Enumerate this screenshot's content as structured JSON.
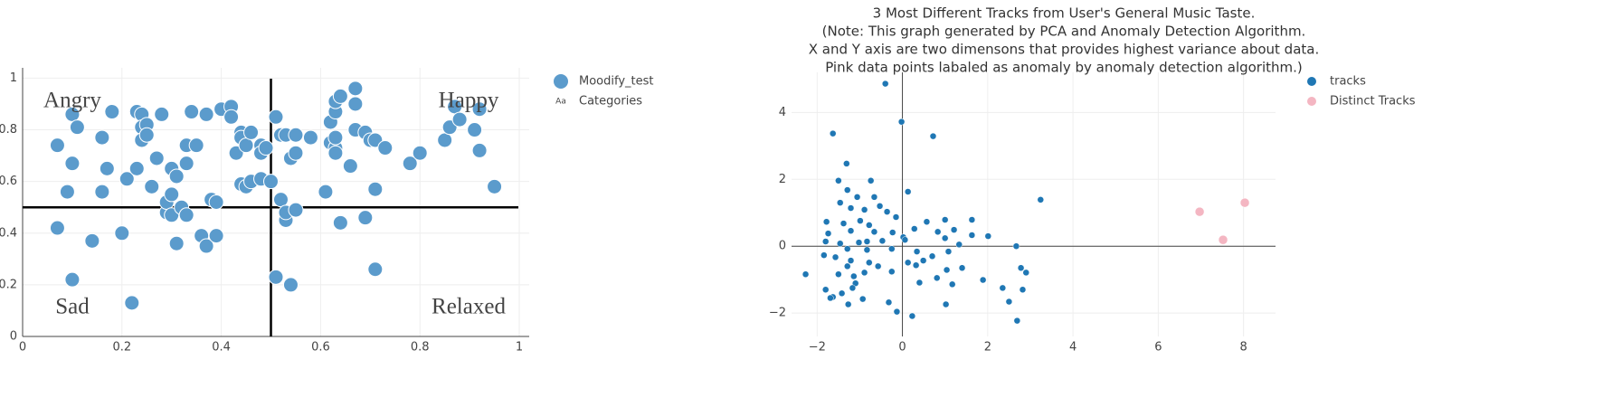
{
  "chart_data": [
    {
      "type": "scatter",
      "xlim": [
        0,
        1.02
      ],
      "ylim": [
        0,
        1.04
      ],
      "xticks": [
        0,
        0.2,
        0.4,
        0.6,
        0.8,
        1
      ],
      "yticks": [
        0,
        0.2,
        0.4,
        0.6,
        0.8,
        1
      ],
      "grid": true,
      "legend": "top-right",
      "vlines": [
        0.5
      ],
      "hlines": [
        0.5
      ],
      "series": [
        {
          "name": "Moodify_test",
          "color": "#5b9bcc",
          "x": [
            0.07,
            0.1,
            0.11,
            0.1,
            0.09,
            0.07,
            0.1,
            0.14,
            0.16,
            0.17,
            0.16,
            0.18,
            0.2,
            0.21,
            0.22,
            0.23,
            0.23,
            0.24,
            0.24,
            0.24,
            0.25,
            0.25,
            0.26,
            0.27,
            0.28,
            0.29,
            0.29,
            0.3,
            0.3,
            0.3,
            0.31,
            0.31,
            0.32,
            0.33,
            0.33,
            0.33,
            0.34,
            0.35,
            0.36,
            0.37,
            0.37,
            0.38,
            0.39,
            0.39,
            0.4,
            0.42,
            0.42,
            0.43,
            0.44,
            0.44,
            0.44,
            0.45,
            0.45,
            0.46,
            0.46,
            0.48,
            0.48,
            0.48,
            0.49,
            0.5,
            0.51,
            0.51,
            0.52,
            0.52,
            0.53,
            0.53,
            0.53,
            0.54,
            0.54,
            0.55,
            0.55,
            0.55,
            0.58,
            0.61,
            0.62,
            0.62,
            0.63,
            0.63,
            0.63,
            0.63,
            0.63,
            0.64,
            0.64,
            0.66,
            0.67,
            0.67,
            0.67,
            0.69,
            0.69,
            0.7,
            0.71,
            0.71,
            0.71,
            0.73,
            0.78,
            0.8,
            0.85,
            0.86,
            0.87,
            0.88,
            0.91,
            0.92,
            0.92,
            0.95
          ],
          "values": [
            0.74,
            0.86,
            0.81,
            0.67,
            0.56,
            0.42,
            0.22,
            0.37,
            0.56,
            0.65,
            0.77,
            0.87,
            0.4,
            0.61,
            0.13,
            0.65,
            0.87,
            0.86,
            0.81,
            0.76,
            0.82,
            0.78,
            0.58,
            0.69,
            0.86,
            0.48,
            0.52,
            0.65,
            0.47,
            0.55,
            0.62,
            0.36,
            0.5,
            0.47,
            0.74,
            0.67,
            0.87,
            0.74,
            0.39,
            0.86,
            0.35,
            0.53,
            0.39,
            0.52,
            0.88,
            0.89,
            0.85,
            0.71,
            0.79,
            0.77,
            0.59,
            0.58,
            0.74,
            0.79,
            0.6,
            0.61,
            0.74,
            0.71,
            0.73,
            0.6,
            0.85,
            0.23,
            0.78,
            0.53,
            0.45,
            0.48,
            0.78,
            0.2,
            0.69,
            0.49,
            0.78,
            0.71,
            0.77,
            0.56,
            0.75,
            0.83,
            0.73,
            0.77,
            0.87,
            0.71,
            0.91,
            0.93,
            0.44,
            0.66,
            0.96,
            0.8,
            0.9,
            0.79,
            0.46,
            0.76,
            0.76,
            0.57,
            0.26,
            0.73,
            0.67,
            0.71,
            0.76,
            0.81,
            0.89,
            0.84,
            0.8,
            0.88,
            0.72,
            0.58
          ]
        }
      ],
      "text_series": {
        "name": "Categories",
        "icon": "Aa",
        "labels": [
          "Angry",
          "Happy",
          "Sad",
          "Relaxed"
        ]
      }
    },
    {
      "type": "scatter",
      "title": [
        "3 Most Different Tracks from User's General Music Taste.",
        "(Note: This graph generated by PCA and Anomaly Detection Algorithm.",
        "X and Y axis are two dimensons that provides highest variance about data.",
        "Pink data points labaled as anomaly by anomaly detection algorithm.)"
      ],
      "xlim": [
        -2.6,
        8.75
      ],
      "ylim": [
        -2.7,
        5.2
      ],
      "xticks": [
        {
          "value": -2,
          "label": "−2"
        },
        0,
        2,
        4,
        6,
        8
      ],
      "yticks": [
        {
          "value": -2,
          "label": "−2"
        },
        0,
        2,
        4
      ],
      "grid": true,
      "legend": "top-right",
      "zero_lines": true,
      "series": [
        {
          "name": "tracks",
          "color": "#1f77b4",
          "x": [
            -0.4,
            -0.02,
            0.72,
            -1.63,
            -1.31,
            -1.5,
            -0.74,
            0.13,
            3.24,
            -1.29,
            -0.66,
            -1.06,
            -1.46,
            -1.21,
            -0.53,
            -0.89,
            -0.36,
            -1.78,
            -1.38,
            -0.99,
            -0.78,
            -0.15,
            0.57,
            1.0,
            1.63,
            0.28,
            0.83,
            1.21,
            -1.74,
            -1.21,
            -0.66,
            -0.23,
            1.63,
            2.01,
            1.0,
            0.02,
            -1.8,
            -1.46,
            -1.02,
            -0.83,
            -0.47,
            0.06,
            1.33,
            2.67,
            -1.29,
            -0.83,
            -0.25,
            0.34,
            0.7,
            1.08,
            -1.84,
            -1.57,
            -1.21,
            -0.78,
            0.13,
            0.49,
            -1.29,
            -0.57,
            0.32,
            1.04,
            1.4,
            2.78,
            2.9,
            -1.5,
            -1.14,
            -0.89,
            -0.25,
            -2.27,
            0.81,
            0.4,
            1.89,
            -1.1,
            1.17,
            -1.17,
            2.35,
            2.82,
            -1.8,
            -1.63,
            -1.42,
            -1.69,
            2.5,
            1.02,
            -1.27,
            -0.93,
            -0.32,
            -0.13,
            0.23,
            2.69
          ],
          "values": [
            4.86,
            3.72,
            3.29,
            3.37,
            2.47,
            1.96,
            1.96,
            1.63,
            1.39,
            1.68,
            1.47,
            1.47,
            1.3,
            1.14,
            1.2,
            1.09,
            1.03,
            0.73,
            0.68,
            0.76,
            0.63,
            0.87,
            0.73,
            0.79,
            0.79,
            0.52,
            0.43,
            0.49,
            0.38,
            0.46,
            0.43,
            0.41,
            0.33,
            0.3,
            0.24,
            0.27,
            0.14,
            0.08,
            0.11,
            0.14,
            0.16,
            0.19,
            0.05,
            0.0,
            -0.08,
            -0.11,
            -0.08,
            -0.16,
            -0.3,
            -0.16,
            -0.27,
            -0.33,
            -0.43,
            -0.49,
            -0.49,
            -0.43,
            -0.6,
            -0.6,
            -0.57,
            -0.71,
            -0.65,
            -0.65,
            -0.79,
            -0.84,
            -0.9,
            -0.79,
            -0.76,
            -0.84,
            -0.95,
            -1.09,
            -1.01,
            -1.11,
            -1.14,
            -1.25,
            -1.25,
            -1.3,
            -1.3,
            -1.52,
            -1.41,
            -1.55,
            -1.66,
            -1.74,
            -1.74,
            -1.58,
            -1.68,
            -1.96,
            -2.09,
            -2.23
          ]
        },
        {
          "name": "Distinct Tracks",
          "color": "#f4b6c2",
          "x": [
            6.97,
            7.52,
            8.03
          ],
          "values": [
            1.03,
            0.19,
            1.3
          ]
        }
      ]
    }
  ]
}
